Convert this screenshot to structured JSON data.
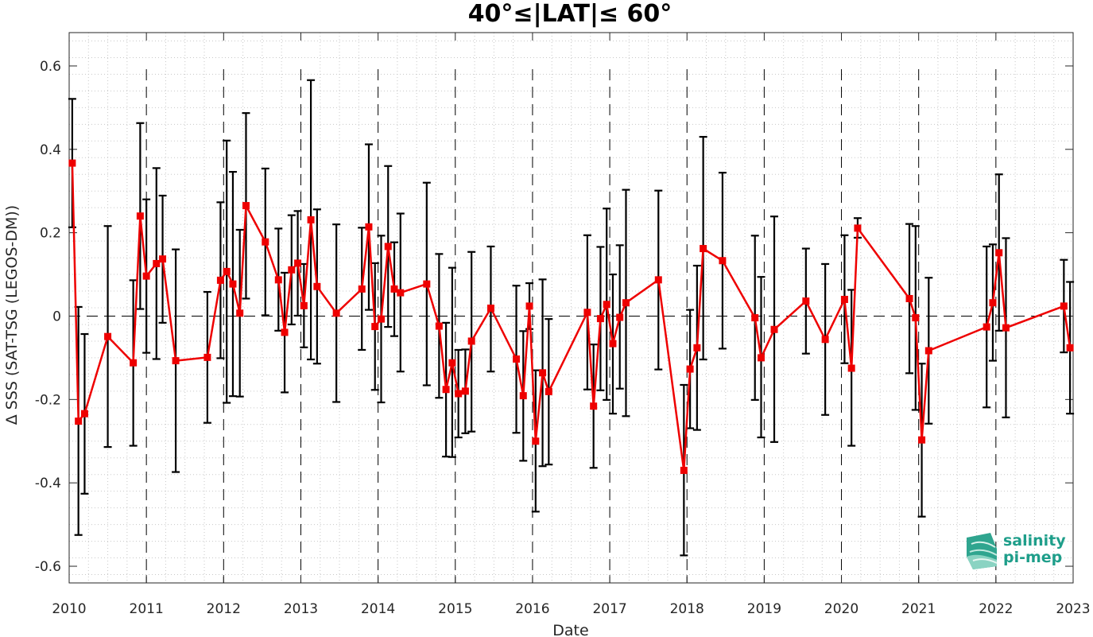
{
  "chart_data": {
    "type": "line",
    "title": "40°≤|LAT|≤ 60°",
    "xlabel": "Date",
    "ylabel": "Δ SSS (SAT-TSG (LEGOS-DM))",
    "xlim": [
      2010,
      2023
    ],
    "ylim": [
      -0.64,
      0.68
    ],
    "x_ticks": [
      "2010",
      "2011",
      "2012",
      "2013",
      "2014",
      "2015",
      "2016",
      "2017",
      "2018",
      "2019",
      "2020",
      "2021",
      "2022",
      "2023"
    ],
    "y_ticks": [
      -0.6,
      -0.4,
      -0.2,
      0,
      0.2,
      0.4,
      0.6
    ],
    "y_tick_labels": [
      "-0.6",
      "-0.4",
      "-0.2",
      "0",
      "0.2",
      "0.4",
      "0.6"
    ],
    "year_dividers": [
      2011,
      2012,
      2013,
      2014,
      2015,
      2016,
      2017,
      2018,
      2019,
      2020,
      2021,
      2022
    ],
    "grid": "minor dotted",
    "zero_line": true,
    "series": [
      {
        "color": "#ee0000",
        "marker": "square",
        "errorbar_color": "#000000",
        "points": [
          {
            "x": 2010.04,
            "y": 0.367,
            "lo": 0.213,
            "hi": 0.521
          },
          {
            "x": 2010.12,
            "y": -0.252,
            "lo": -0.525,
            "hi": 0.022
          },
          {
            "x": 2010.2,
            "y": -0.234,
            "lo": -0.426,
            "hi": -0.043
          },
          {
            "x": 2010.5,
            "y": -0.049,
            "lo": -0.314,
            "hi": 0.216
          },
          {
            "x": 2010.83,
            "y": -0.112,
            "lo": -0.311,
            "hi": 0.086
          },
          {
            "x": 2010.92,
            "y": 0.24,
            "lo": 0.017,
            "hi": 0.463
          },
          {
            "x": 2011.0,
            "y": 0.096,
            "lo": -0.088,
            "hi": 0.28
          },
          {
            "x": 2011.13,
            "y": 0.126,
            "lo": -0.103,
            "hi": 0.355
          },
          {
            "x": 2011.21,
            "y": 0.137,
            "lo": -0.016,
            "hi": 0.289
          },
          {
            "x": 2011.38,
            "y": -0.107,
            "lo": -0.374,
            "hi": 0.16
          },
          {
            "x": 2011.79,
            "y": -0.099,
            "lo": -0.256,
            "hi": 0.058
          },
          {
            "x": 2011.96,
            "y": 0.086,
            "lo": -0.101,
            "hi": 0.273
          },
          {
            "x": 2012.04,
            "y": 0.107,
            "lo": -0.208,
            "hi": 0.421
          },
          {
            "x": 2012.12,
            "y": 0.077,
            "lo": -0.192,
            "hi": 0.346
          },
          {
            "x": 2012.21,
            "y": 0.007,
            "lo": -0.193,
            "hi": 0.207
          },
          {
            "x": 2012.29,
            "y": 0.265,
            "lo": 0.042,
            "hi": 0.487
          },
          {
            "x": 2012.54,
            "y": 0.178,
            "lo": 0.002,
            "hi": 0.354
          },
          {
            "x": 2012.71,
            "y": 0.087,
            "lo": -0.035,
            "hi": 0.21
          },
          {
            "x": 2012.79,
            "y": -0.039,
            "lo": -0.183,
            "hi": 0.104
          },
          {
            "x": 2012.88,
            "y": 0.111,
            "lo": -0.02,
            "hi": 0.242
          },
          {
            "x": 2012.96,
            "y": 0.127,
            "lo": 0.001,
            "hi": 0.252
          },
          {
            "x": 2013.04,
            "y": 0.025,
            "lo": -0.075,
            "hi": 0.125
          },
          {
            "x": 2013.13,
            "y": 0.231,
            "lo": -0.104,
            "hi": 0.566
          },
          {
            "x": 2013.21,
            "y": 0.071,
            "lo": -0.114,
            "hi": 0.256
          },
          {
            "x": 2013.46,
            "y": 0.007,
            "lo": -0.206,
            "hi": 0.22
          },
          {
            "x": 2013.79,
            "y": 0.065,
            "lo": -0.081,
            "hi": 0.212
          },
          {
            "x": 2013.88,
            "y": 0.214,
            "lo": 0.015,
            "hi": 0.412
          },
          {
            "x": 2013.96,
            "y": -0.025,
            "lo": -0.177,
            "hi": 0.127
          },
          {
            "x": 2014.04,
            "y": -0.007,
            "lo": -0.207,
            "hi": 0.193
          },
          {
            "x": 2014.13,
            "y": 0.167,
            "lo": -0.026,
            "hi": 0.36
          },
          {
            "x": 2014.21,
            "y": 0.065,
            "lo": -0.048,
            "hi": 0.177
          },
          {
            "x": 2014.29,
            "y": 0.056,
            "lo": -0.133,
            "hi": 0.246
          },
          {
            "x": 2014.63,
            "y": 0.077,
            "lo": -0.166,
            "hi": 0.32
          },
          {
            "x": 2014.79,
            "y": -0.024,
            "lo": -0.196,
            "hi": 0.149
          },
          {
            "x": 2014.88,
            "y": -0.176,
            "lo": -0.337,
            "hi": -0.016
          },
          {
            "x": 2014.96,
            "y": -0.112,
            "lo": -0.338,
            "hi": 0.116
          },
          {
            "x": 2015.04,
            "y": -0.186,
            "lo": -0.291,
            "hi": -0.081
          },
          {
            "x": 2015.13,
            "y": -0.18,
            "lo": -0.281,
            "hi": -0.08
          },
          {
            "x": 2015.21,
            "y": -0.06,
            "lo": -0.277,
            "hi": 0.154
          },
          {
            "x": 2015.46,
            "y": 0.019,
            "lo": -0.133,
            "hi": 0.167
          },
          {
            "x": 2015.79,
            "y": -0.103,
            "lo": -0.28,
            "hi": 0.073
          },
          {
            "x": 2015.88,
            "y": -0.191,
            "lo": -0.347,
            "hi": -0.036
          },
          {
            "x": 2015.96,
            "y": 0.024,
            "lo": -0.031,
            "hi": 0.079
          },
          {
            "x": 2016.04,
            "y": -0.3,
            "lo": -0.469,
            "hi": -0.13
          },
          {
            "x": 2016.13,
            "y": -0.136,
            "lo": -0.36,
            "hi": 0.088
          },
          {
            "x": 2016.21,
            "y": -0.181,
            "lo": -0.356,
            "hi": -0.007
          },
          {
            "x": 2016.71,
            "y": 0.009,
            "lo": -0.176,
            "hi": 0.194
          },
          {
            "x": 2016.79,
            "y": -0.216,
            "lo": -0.364,
            "hi": -0.068
          },
          {
            "x": 2016.88,
            "y": -0.006,
            "lo": -0.178,
            "hi": 0.166
          },
          {
            "x": 2016.96,
            "y": 0.028,
            "lo": -0.201,
            "hi": 0.258
          },
          {
            "x": 2017.04,
            "y": -0.066,
            "lo": -0.234,
            "hi": 0.1
          },
          {
            "x": 2017.13,
            "y": -0.003,
            "lo": -0.174,
            "hi": 0.17
          },
          {
            "x": 2017.21,
            "y": 0.032,
            "lo": -0.24,
            "hi": 0.303
          },
          {
            "x": 2017.63,
            "y": 0.087,
            "lo": -0.128,
            "hi": 0.301
          },
          {
            "x": 2017.96,
            "y": -0.37,
            "lo": -0.574,
            "hi": -0.165
          },
          {
            "x": 2018.04,
            "y": -0.127,
            "lo": -0.269,
            "hi": 0.015
          },
          {
            "x": 2018.13,
            "y": -0.076,
            "lo": -0.273,
            "hi": 0.121
          },
          {
            "x": 2018.21,
            "y": 0.162,
            "lo": -0.104,
            "hi": 0.43
          },
          {
            "x": 2018.46,
            "y": 0.133,
            "lo": -0.078,
            "hi": 0.344
          },
          {
            "x": 2018.88,
            "y": -0.004,
            "lo": -0.201,
            "hi": 0.193
          },
          {
            "x": 2018.96,
            "y": -0.1,
            "lo": -0.291,
            "hi": 0.094
          },
          {
            "x": 2019.13,
            "y": -0.032,
            "lo": -0.302,
            "hi": 0.239
          },
          {
            "x": 2019.54,
            "y": 0.036,
            "lo": -0.09,
            "hi": 0.162
          },
          {
            "x": 2019.79,
            "y": -0.056,
            "lo": -0.237,
            "hi": 0.125
          },
          {
            "x": 2020.04,
            "y": 0.04,
            "lo": -0.113,
            "hi": 0.194
          },
          {
            "x": 2020.13,
            "y": -0.125,
            "lo": -0.311,
            "hi": 0.063
          },
          {
            "x": 2020.21,
            "y": 0.211,
            "lo": 0.188,
            "hi": 0.235
          },
          {
            "x": 2020.88,
            "y": 0.042,
            "lo": -0.137,
            "hi": 0.221
          },
          {
            "x": 2020.96,
            "y": -0.004,
            "lo": -0.225,
            "hi": 0.216
          },
          {
            "x": 2021.04,
            "y": -0.297,
            "lo": -0.481,
            "hi": -0.114
          },
          {
            "x": 2021.13,
            "y": -0.083,
            "lo": -0.258,
            "hi": 0.092
          },
          {
            "x": 2021.88,
            "y": -0.026,
            "lo": -0.219,
            "hi": 0.167
          },
          {
            "x": 2021.96,
            "y": 0.032,
            "lo": -0.107,
            "hi": 0.172
          },
          {
            "x": 2022.04,
            "y": 0.152,
            "lo": -0.035,
            "hi": 0.34
          },
          {
            "x": 2022.13,
            "y": -0.028,
            "lo": -0.243,
            "hi": 0.187
          },
          {
            "x": 2022.88,
            "y": 0.024,
            "lo": -0.087,
            "hi": 0.135
          },
          {
            "x": 2022.96,
            "y": -0.076,
            "lo": -0.234,
            "hi": 0.082
          }
        ]
      }
    ]
  },
  "logo": {
    "line1": "salinity",
    "line2": "pi-mep",
    "text_color": "#1e9e8a",
    "icon_icon": "wave-cube-icon"
  }
}
